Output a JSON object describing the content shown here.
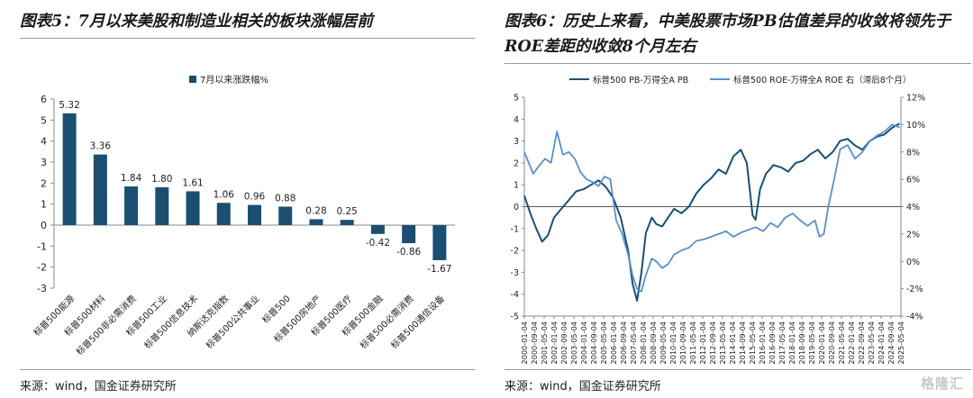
{
  "left": {
    "figure_title": "图表5：7月以来美股和制造业相关的板块涨幅居前",
    "source": "来源：wind，国金证券研究所",
    "chart_data": {
      "type": "bar",
      "legend": [
        "7月以来涨跌幅%"
      ],
      "legend_position": "top",
      "categories": [
        "标普500能源",
        "标普500材料",
        "标普500非必需消费",
        "标普500工业",
        "标普500信息技术",
        "纳斯达克指数",
        "标普500公共事业",
        "标普500",
        "标普500房地产",
        "标普500医疗",
        "标普500金融",
        "标普500必需消费",
        "标普500通信设备"
      ],
      "values": [
        5.32,
        3.36,
        1.84,
        1.8,
        1.61,
        1.06,
        0.96,
        0.88,
        0.28,
        0.25,
        -0.42,
        -0.86,
        -1.67
      ],
      "value_labels": [
        "5.32",
        "3.36",
        "1.84",
        "1.80",
        "1.61",
        "1.06",
        "0.96",
        "0.88",
        "0.28",
        "0.25",
        "-0.42",
        "-0.86",
        "-1.67"
      ],
      "ylim": [
        -3,
        6
      ],
      "yticks": [
        "6",
        "5",
        "4",
        "3",
        "2",
        "1",
        "0",
        "-1",
        "-2",
        "-3"
      ],
      "color": "#1b4f72"
    }
  },
  "right": {
    "figure_title": "图表6：历史上来看，中美股票市场PB估值差异的收敛将领先于ROE差距的收敛8个月左右",
    "source": "来源：wind，国金证券研究所",
    "chart_data": {
      "type": "line",
      "series": [
        {
          "name": "标普500 PB-万得全A PB",
          "axis": "left",
          "color": "#1b4f72",
          "x": [
            2000.0,
            2000.4,
            2000.8,
            2001.2,
            2001.6,
            2002.0,
            2002.5,
            2003.0,
            2003.5,
            2004.0,
            2004.5,
            2005.0,
            2005.5,
            2006.0,
            2006.5,
            2007.0,
            2007.3,
            2007.6,
            2007.9,
            2008.2,
            2008.6,
            2008.9,
            2009.3,
            2009.7,
            2010.1,
            2010.6,
            2011.1,
            2011.6,
            2012.1,
            2012.6,
            2013.1,
            2013.6,
            2014.1,
            2014.6,
            2015.0,
            2015.4,
            2015.6,
            2015.9,
            2016.3,
            2016.8,
            2017.3,
            2017.8,
            2018.3,
            2018.8,
            2019.3,
            2019.8,
            2020.3,
            2020.8,
            2021.3,
            2021.8,
            2022.3,
            2022.8,
            2023.3,
            2023.8,
            2024.3,
            2024.8,
            2025.3
          ],
          "y": [
            0.5,
            -0.3,
            -1.0,
            -1.6,
            -1.3,
            -0.5,
            -0.1,
            0.3,
            0.7,
            0.8,
            1.0,
            1.2,
            0.9,
            0.4,
            -0.5,
            -2.0,
            -3.5,
            -4.3,
            -3.0,
            -1.2,
            -0.5,
            -0.8,
            -0.9,
            -0.5,
            -0.1,
            -0.3,
            0.0,
            0.6,
            1.0,
            1.3,
            1.7,
            1.5,
            2.3,
            2.6,
            2.0,
            -0.4,
            -0.6,
            0.8,
            1.5,
            1.9,
            1.8,
            1.6,
            2.0,
            2.1,
            2.4,
            2.6,
            2.2,
            2.5,
            3.0,
            3.1,
            2.8,
            2.6,
            3.0,
            3.2,
            3.3,
            3.6,
            3.8
          ]
        },
        {
          "name": "标普500 ROE-万得全A ROE 右（滞后8个月）",
          "axis": "right",
          "color": "#5b8fc7",
          "x": [
            2000.0,
            2000.3,
            2000.6,
            2001.0,
            2001.4,
            2001.8,
            2002.2,
            2002.6,
            2003.0,
            2003.4,
            2003.8,
            2004.2,
            2004.6,
            2005.0,
            2005.4,
            2005.8,
            2006.2,
            2006.6,
            2007.0,
            2007.3,
            2007.6,
            2007.9,
            2008.2,
            2008.6,
            2008.9,
            2009.3,
            2009.7,
            2010.1,
            2010.6,
            2011.1,
            2011.6,
            2012.1,
            2012.6,
            2013.1,
            2013.6,
            2014.1,
            2014.6,
            2015.1,
            2015.6,
            2016.1,
            2016.6,
            2017.1,
            2017.6,
            2018.1,
            2018.6,
            2019.1,
            2019.6,
            2019.9,
            2020.2,
            2020.5,
            2020.9,
            2021.3,
            2021.8,
            2022.3,
            2022.8,
            2023.3,
            2023.8,
            2024.3,
            2024.8,
            2025.3
          ],
          "y": [
            8.0,
            7.2,
            6.4,
            7.0,
            7.5,
            7.2,
            9.5,
            7.8,
            8.0,
            7.5,
            6.5,
            6.0,
            5.8,
            5.5,
            6.2,
            6.0,
            3.0,
            2.0,
            0.5,
            -1.0,
            -2.0,
            -2.2,
            -1.0,
            0.2,
            0.0,
            -0.5,
            -0.2,
            0.5,
            0.8,
            1.0,
            1.5,
            1.6,
            1.8,
            2.0,
            2.2,
            1.8,
            2.1,
            2.3,
            2.5,
            2.2,
            2.8,
            2.5,
            3.2,
            3.5,
            3.0,
            2.6,
            3.0,
            1.8,
            2.0,
            4.0,
            6.0,
            8.2,
            8.5,
            7.5,
            8.0,
            8.8,
            9.2,
            9.5,
            10.0,
            9.8
          ]
        }
      ],
      "y_left": {
        "min": -5,
        "max": 5,
        "ticks": [
          "5",
          "4",
          "3",
          "2",
          "1",
          "0",
          "-1",
          "-2",
          "-3",
          "-4",
          "-5"
        ]
      },
      "y_right": {
        "min": -4,
        "max": 12,
        "ticks": [
          "12%",
          "10%",
          "8%",
          "6%",
          "4%",
          "2%",
          "0%",
          "-2%",
          "-4%"
        ]
      },
      "x_tick_labels": [
        "2000-01-04",
        "2000-09-04",
        "2001-05-04",
        "2002-01-04",
        "2002-09-04",
        "2003-05-04",
        "2004-01-04",
        "2004-09-04",
        "2005-05-04",
        "2006-01-04",
        "2006-09-04",
        "2007-05-04",
        "2008-01-04",
        "2008-09-04",
        "2009-05-04",
        "2010-01-04",
        "2010-09-04",
        "2011-05-04",
        "2012-01-04",
        "2012-09-04",
        "2013-05-04",
        "2014-01-04",
        "2014-09-04",
        "2015-05-04",
        "2016-01-04",
        "2016-09-04",
        "2017-05-04",
        "2018-01-04",
        "2018-09-04",
        "2019-05-04",
        "2020-01-04",
        "2020-09-04",
        "2021-05-04",
        "2022-01-04",
        "2022-09-04",
        "2023-05-04",
        "2024-01-04",
        "2024-09-04",
        "2025-05-04"
      ],
      "legend_position": "top"
    }
  },
  "watermark": "格隆汇"
}
